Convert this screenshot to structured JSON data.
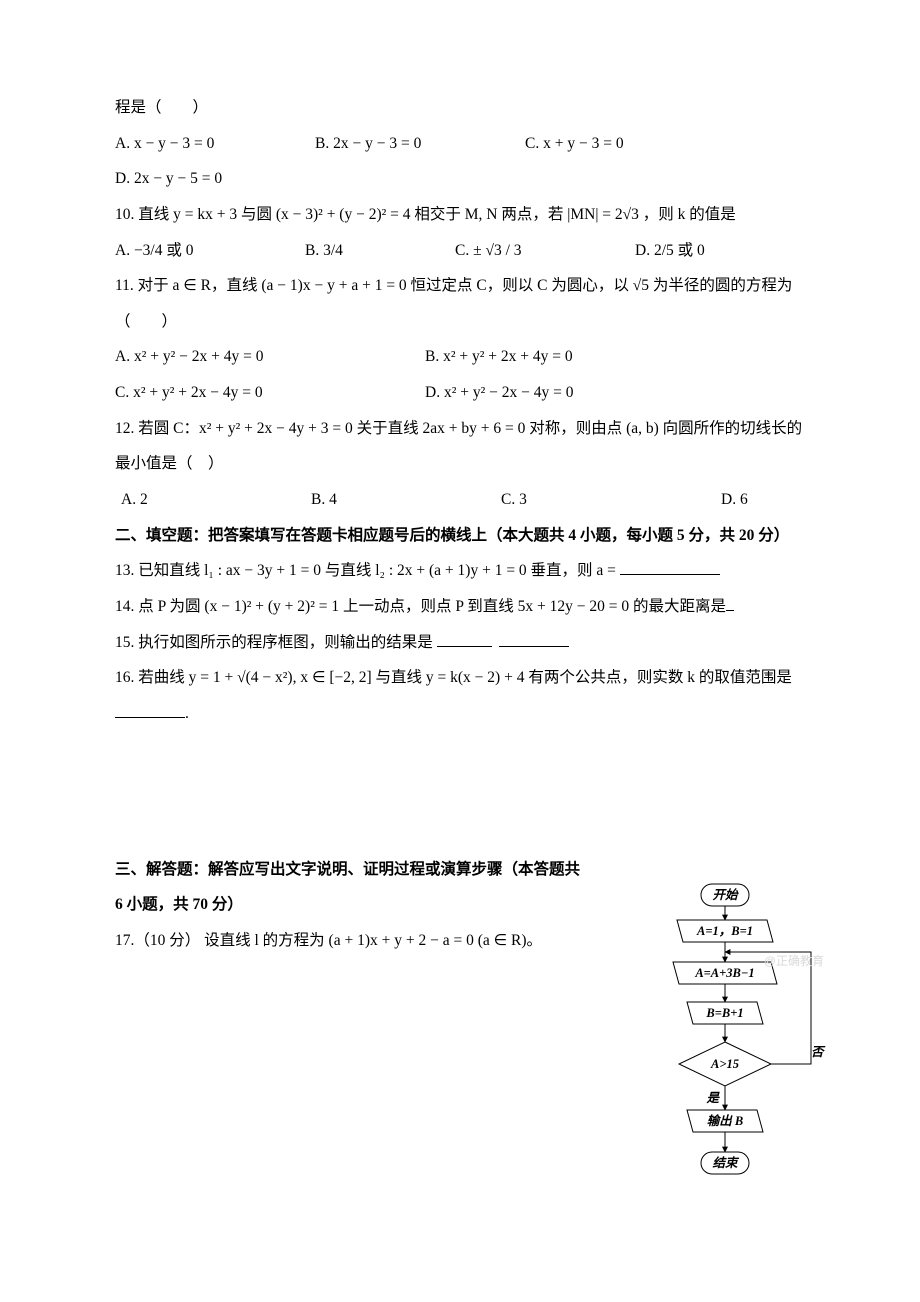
{
  "q9": {
    "stem_tail": "程是（　　）",
    "optA": "A. x − y − 3 = 0",
    "optB": "B. 2x − y − 3 = 0",
    "optC": "C. x + y − 3 = 0",
    "optD": "D. 2x − y − 5 = 0"
  },
  "q10": {
    "stem": "10. 直线 y = kx + 3 与圆 (x − 3)² + (y − 2)² = 4 相交于 M, N 两点，若 |MN| = 2√3 ，则 k 的值是",
    "optA": "A.  −3/4 或 0",
    "optB": "B.  3/4",
    "optC": "C.  ± √3 / 3",
    "optD": "D.  2/5 或 0"
  },
  "q11": {
    "stem": "11.  对于 a ∈ R，直线 (a − 1)x − y + a + 1 = 0 恒过定点 C，则以 C 为圆心，以 √5 为半径的圆的方程为（　　）",
    "optA": "A.  x² + y² − 2x + 4y = 0",
    "optB": "B.  x² + y² + 2x + 4y = 0",
    "optC": "C.  x² + y² + 2x − 4y = 0",
    "optD": "D.  x² + y² − 2x − 4y = 0"
  },
  "q12": {
    "stem": "12. 若圆 C：x² + y² + 2x − 4y + 3 = 0 关于直线 2ax + by + 6 = 0 对称，则由点 (a, b) 向圆所作的切线长的最小值是（　）",
    "optA": "A. 2",
    "optB": "B.  4",
    "optC": "C. 3",
    "optD": "D. 6"
  },
  "section2": {
    "title": "二、填空题：把答案填写在答题卡相应题号后的横线上（本大题共 4 小题，每小题 5 分，共 20 分）"
  },
  "q13": {
    "stem": "13.  已知直线 l₁ : ax − 3y + 1 = 0 与直线 l₂ : 2x + (a + 1)y + 1 = 0 垂直，则 a = "
  },
  "q14": {
    "stem": "14. 点 P 为圆 (x − 1)² + (y + 2)² = 1 上一动点，则点 P 到直线 5x + 12y − 20 = 0 的最大距离是"
  },
  "q15": {
    "stem": "15.  执行如图所示的程序框图，则输出的结果是"
  },
  "q16": {
    "stem": "16. 若曲线 y = 1 + √(4 − x²), x ∈ [−2, 2] 与直线 y = k(x − 2) + 4 有两个公共点，则实数 k 的取值范围是",
    "tail": "."
  },
  "section3": {
    "title": "三、解答题：解答应写出文字说明、证明过程或演算步骤（本答题共 6 小题，共 70 分）"
  },
  "q17": {
    "stem": "17.（10 分） 设直线 l 的方程为 (a + 1)x + y + 2 − a = 0 (a ∈ R)。"
  },
  "flowchart": {
    "start": "开始",
    "init": "A=1，B=1",
    "stepA": "A=A+3B−1",
    "stepB": "B=B+1",
    "cond": "A>15",
    "yes": "是",
    "no": "否",
    "output": "输出 B",
    "end": "结束",
    "stroke": "#000000",
    "fill": "#ffffff",
    "line_w": 1
  },
  "watermark": "@正确教育"
}
